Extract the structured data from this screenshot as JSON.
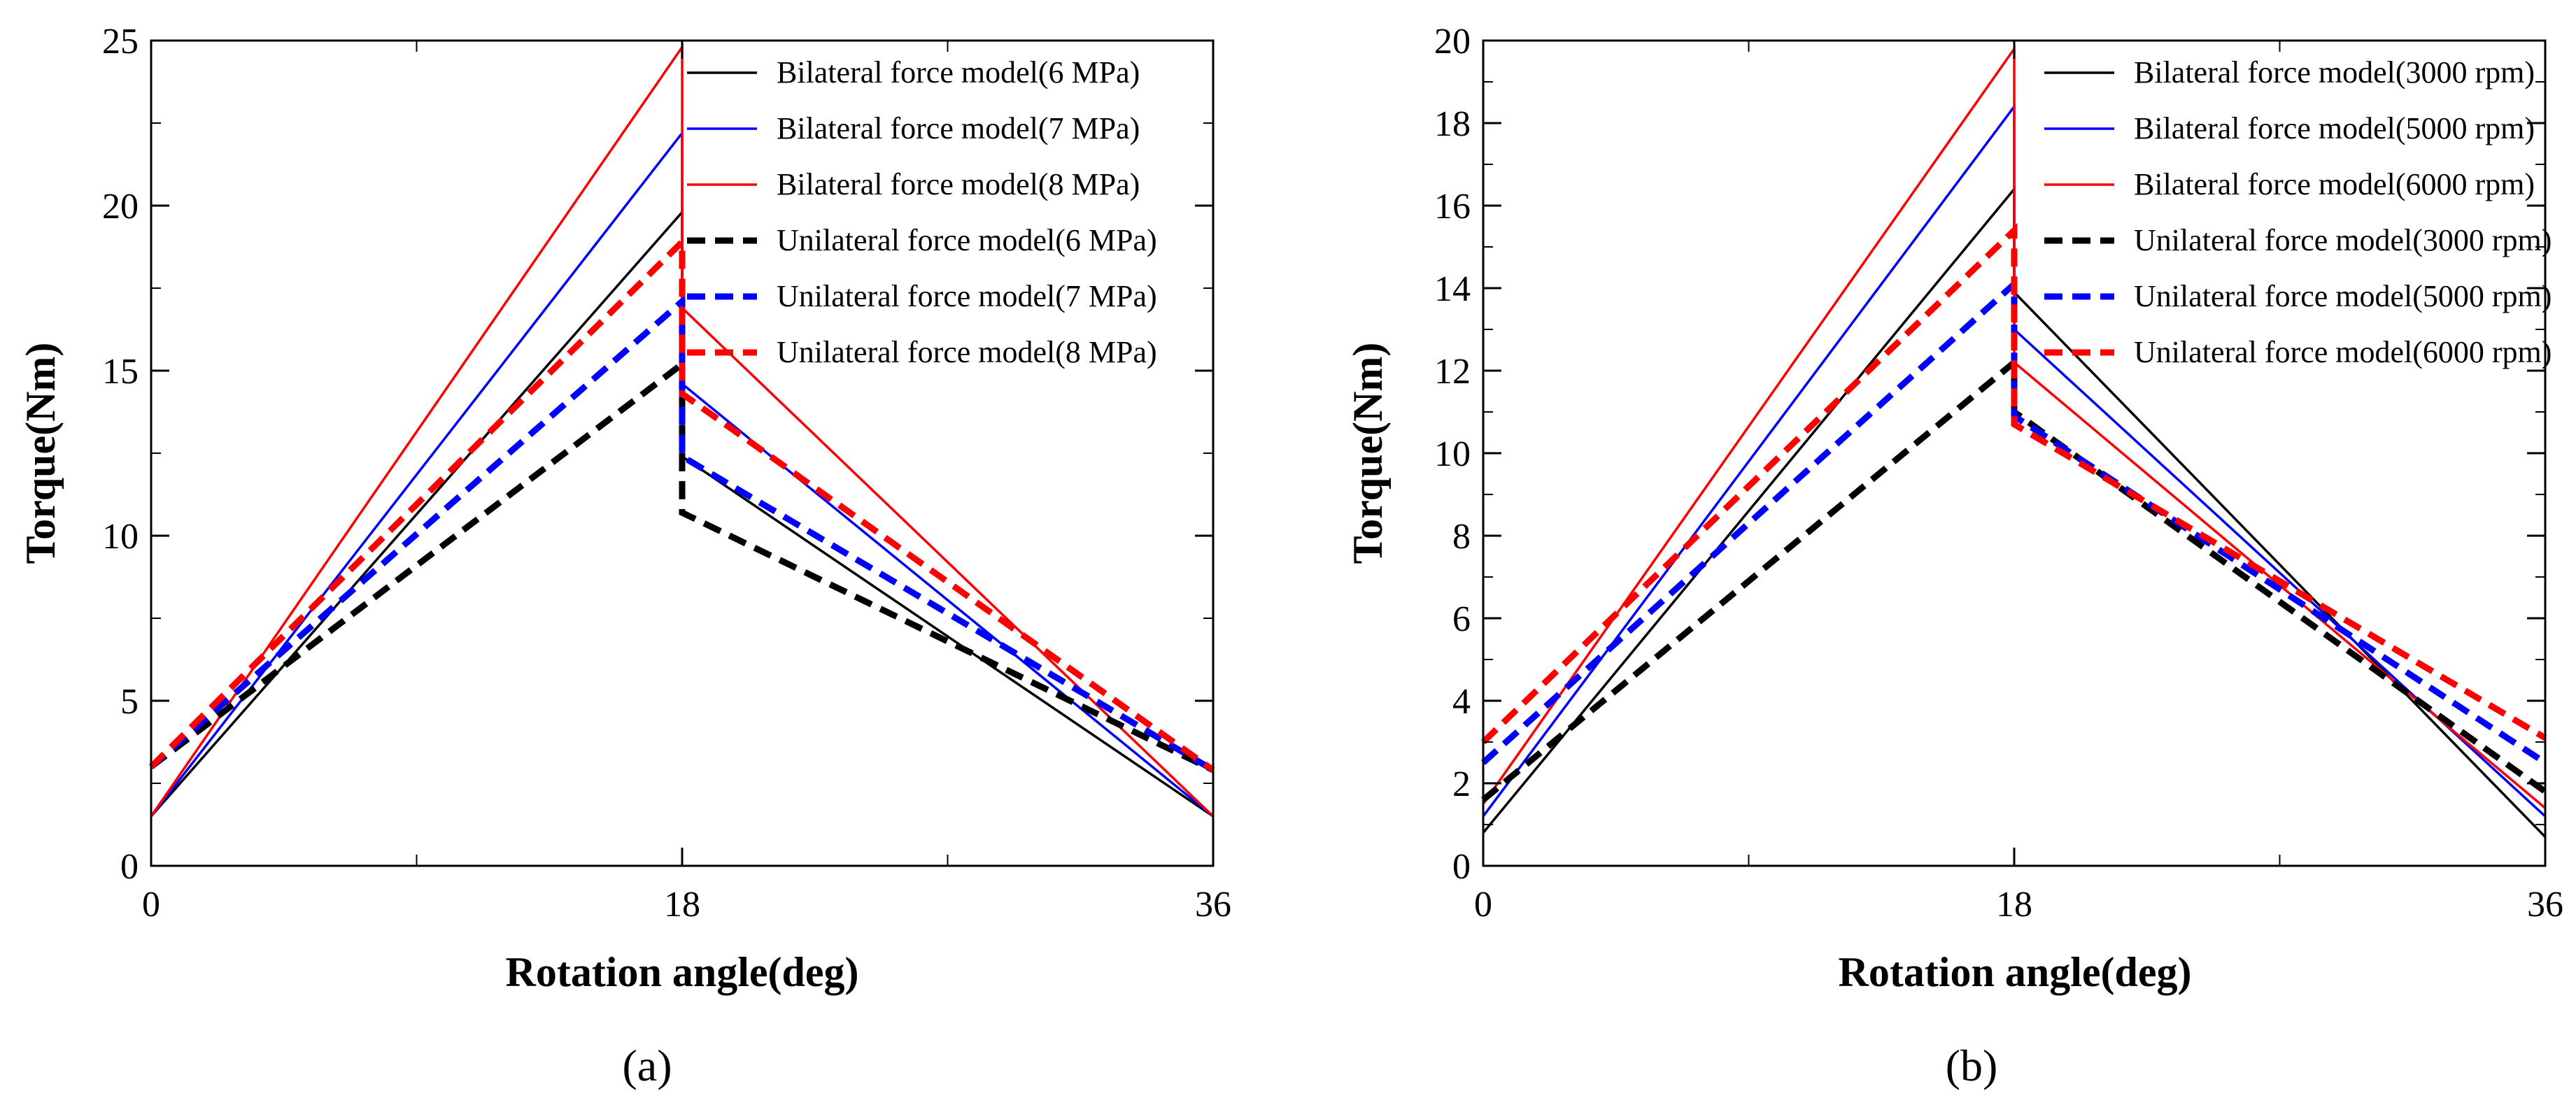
{
  "chart_data": [
    {
      "type": "line",
      "panel_label": "(a)",
      "xlabel": "Rotation angle(deg)",
      "ylabel": "Torque(Nm)",
      "xlim": [
        0,
        36
      ],
      "ylim": [
        0,
        25
      ],
      "xticks": [
        0,
        18,
        36
      ],
      "yticks": [
        0,
        5,
        10,
        15,
        20,
        25
      ],
      "grid": false,
      "legend_position": "top-right",
      "series": [
        {
          "name": "Bilateral force model(6 MPa)",
          "color": "#000000",
          "dash": "solid",
          "x": [
            0,
            18,
            18,
            36
          ],
          "y": [
            1.5,
            19.8,
            12.4,
            1.5
          ]
        },
        {
          "name": "Bilateral force model(7 MPa)",
          "color": "#0000ff",
          "dash": "solid",
          "x": [
            0,
            18,
            18,
            36
          ],
          "y": [
            1.5,
            22.2,
            14.6,
            1.5
          ]
        },
        {
          "name": "Bilateral force model(8 MPa)",
          "color": "#ff0000",
          "dash": "solid",
          "x": [
            0,
            18,
            18,
            36
          ],
          "y": [
            1.5,
            24.8,
            16.9,
            1.5
          ]
        },
        {
          "name": "Unilateral force model(6 MPa)",
          "color": "#000000",
          "dash": "dashed",
          "x": [
            0,
            18,
            18,
            36
          ],
          "y": [
            3.0,
            15.2,
            10.7,
            2.9
          ]
        },
        {
          "name": "Unilateral force model(7 MPa)",
          "color": "#0000ff",
          "dash": "dashed",
          "x": [
            0,
            18,
            18,
            36
          ],
          "y": [
            3.0,
            17.1,
            12.4,
            2.9
          ]
        },
        {
          "name": "Unilateral force model(8 MPa)",
          "color": "#ff0000",
          "dash": "dashed",
          "x": [
            0,
            18,
            18,
            36
          ],
          "y": [
            3.0,
            18.9,
            14.3,
            2.9
          ]
        }
      ]
    },
    {
      "type": "line",
      "panel_label": "(b)",
      "xlabel": "Rotation angle(deg)",
      "ylabel": "Torque(Nm)",
      "xlim": [
        0,
        36
      ],
      "ylim": [
        0,
        20
      ],
      "xticks": [
        0,
        18,
        36
      ],
      "yticks": [
        0,
        2,
        4,
        6,
        8,
        10,
        12,
        14,
        16,
        18,
        20
      ],
      "grid": false,
      "legend_position": "top-right",
      "series": [
        {
          "name": "Bilateral force model(3000 rpm)",
          "color": "#000000",
          "dash": "solid",
          "x": [
            0,
            18,
            18,
            36
          ],
          "y": [
            0.8,
            16.4,
            13.9,
            0.7
          ]
        },
        {
          "name": "Bilateral force model(5000 rpm)",
          "color": "#0000ff",
          "dash": "solid",
          "x": [
            0,
            18,
            18,
            36
          ],
          "y": [
            1.2,
            18.4,
            13.0,
            1.2
          ]
        },
        {
          "name": "Bilateral force model(6000 rpm)",
          "color": "#ff0000",
          "dash": "solid",
          "x": [
            0,
            18,
            18,
            36
          ],
          "y": [
            1.5,
            19.8,
            12.2,
            1.4
          ]
        },
        {
          "name": "Unilateral force model(3000 rpm)",
          "color": "#000000",
          "dash": "dashed",
          "x": [
            0,
            18,
            18,
            36
          ],
          "y": [
            1.6,
            12.2,
            11.0,
            1.8
          ]
        },
        {
          "name": "Unilateral force model(5000 rpm)",
          "color": "#0000ff",
          "dash": "dashed",
          "x": [
            0,
            18,
            18,
            36
          ],
          "y": [
            2.5,
            14.1,
            10.9,
            2.5
          ]
        },
        {
          "name": "Unilateral force model(6000 rpm)",
          "color": "#ff0000",
          "dash": "dashed",
          "x": [
            0,
            18,
            18,
            36
          ],
          "y": [
            3.0,
            15.4,
            10.7,
            3.1
          ]
        }
      ]
    }
  ]
}
